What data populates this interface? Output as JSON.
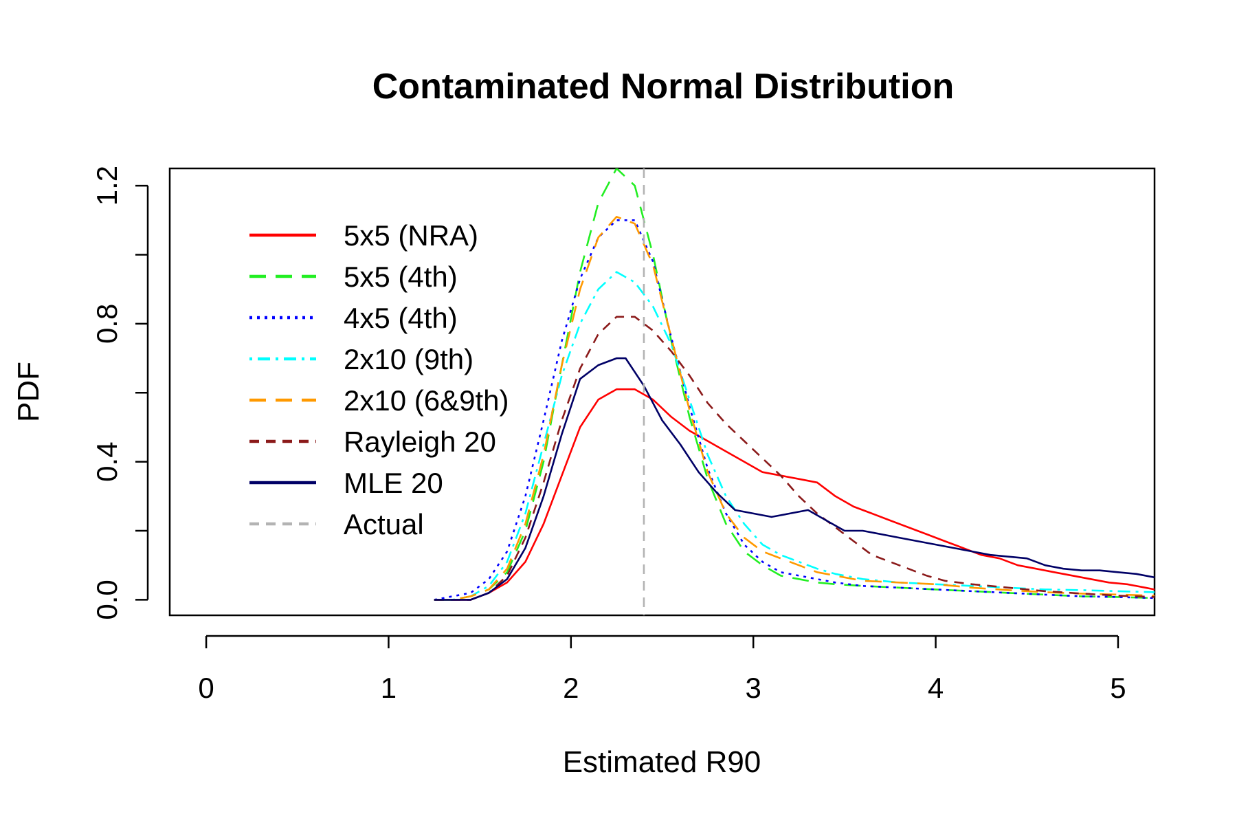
{
  "chart_data": {
    "type": "line",
    "title": "Contaminated Normal Distribution",
    "xlabel": "Estimated R90",
    "ylabel": "PDF",
    "xlim": [
      -0.2,
      5.2
    ],
    "ylim": [
      -0.045,
      1.25
    ],
    "x_ticks": [
      0,
      1,
      2,
      3,
      4,
      5
    ],
    "x_tick_labels": [
      "0",
      "1",
      "2",
      "3",
      "4",
      "5"
    ],
    "y_ticks": [
      0.0,
      0.2,
      0.4,
      0.6,
      0.8,
      1.0,
      1.2
    ],
    "y_tick_labels": [
      "0.0",
      "",
      "0.4",
      "",
      "0.8",
      "",
      "1.2"
    ],
    "grid": false,
    "legend_position": "top-left",
    "series": [
      {
        "name": "5x5 (NRA)",
        "color": "#ff0000",
        "dash": "solid",
        "x": [
          1.25,
          1.35,
          1.45,
          1.55,
          1.65,
          1.75,
          1.85,
          1.95,
          2.05,
          2.15,
          2.25,
          2.35,
          2.45,
          2.55,
          2.65,
          2.75,
          2.85,
          2.95,
          3.05,
          3.15,
          3.25,
          3.35,
          3.45,
          3.55,
          3.65,
          3.75,
          3.85,
          3.95,
          4.05,
          4.15,
          4.25,
          4.35,
          4.45,
          4.55,
          4.65,
          4.75,
          4.85,
          4.95,
          5.05,
          5.15,
          5.2
        ],
        "y": [
          0.0,
          0.0,
          0.0,
          0.02,
          0.05,
          0.11,
          0.22,
          0.36,
          0.5,
          0.58,
          0.61,
          0.61,
          0.58,
          0.53,
          0.49,
          0.46,
          0.43,
          0.4,
          0.37,
          0.36,
          0.35,
          0.34,
          0.3,
          0.27,
          0.25,
          0.23,
          0.21,
          0.19,
          0.17,
          0.15,
          0.13,
          0.12,
          0.1,
          0.09,
          0.08,
          0.07,
          0.06,
          0.05,
          0.045,
          0.035,
          0.03
        ]
      },
      {
        "name": "5x5 (4th)",
        "color": "#22ee22",
        "dash": "long-dash",
        "x": [
          1.25,
          1.35,
          1.45,
          1.55,
          1.65,
          1.75,
          1.85,
          1.95,
          2.05,
          2.15,
          2.25,
          2.35,
          2.45,
          2.55,
          2.65,
          2.75,
          2.85,
          2.95,
          3.05,
          3.15,
          3.25,
          3.35,
          3.45,
          3.6,
          3.8,
          4.0,
          4.2,
          4.4,
          4.6,
          4.8,
          5.0,
          5.2
        ],
        "y": [
          0.0,
          0.0,
          0.01,
          0.03,
          0.08,
          0.2,
          0.4,
          0.68,
          0.95,
          1.15,
          1.25,
          1.2,
          1.0,
          0.75,
          0.53,
          0.35,
          0.22,
          0.14,
          0.1,
          0.07,
          0.06,
          0.05,
          0.045,
          0.04,
          0.035,
          0.03,
          0.025,
          0.02,
          0.015,
          0.01,
          0.008,
          0.005
        ]
      },
      {
        "name": "4x5 (4th)",
        "color": "#0000ff",
        "dash": "dotted",
        "x": [
          1.25,
          1.35,
          1.45,
          1.55,
          1.65,
          1.75,
          1.85,
          1.95,
          2.05,
          2.15,
          2.25,
          2.35,
          2.45,
          2.55,
          2.65,
          2.75,
          2.85,
          2.95,
          3.05,
          3.15,
          3.25,
          3.35,
          3.45,
          3.6,
          3.8,
          4.0,
          4.2,
          4.4,
          4.6,
          4.8,
          5.0,
          5.2
        ],
        "y": [
          0.0,
          0.01,
          0.02,
          0.06,
          0.14,
          0.3,
          0.52,
          0.75,
          0.93,
          1.05,
          1.1,
          1.1,
          0.98,
          0.76,
          0.56,
          0.38,
          0.25,
          0.16,
          0.11,
          0.08,
          0.07,
          0.06,
          0.05,
          0.04,
          0.035,
          0.03,
          0.025,
          0.02,
          0.015,
          0.01,
          0.008,
          0.005
        ]
      },
      {
        "name": "2x10 (9th)",
        "color": "#00ffff",
        "dash": "dot-dash",
        "x": [
          1.25,
          1.35,
          1.45,
          1.55,
          1.65,
          1.75,
          1.85,
          1.95,
          2.05,
          2.15,
          2.25,
          2.35,
          2.45,
          2.55,
          2.65,
          2.75,
          2.85,
          2.95,
          3.05,
          3.15,
          3.25,
          3.35,
          3.45,
          3.6,
          3.8,
          4.0,
          4.2,
          4.4,
          4.6,
          4.8,
          5.0,
          5.2
        ],
        "y": [
          0.0,
          0.0,
          0.01,
          0.04,
          0.11,
          0.25,
          0.45,
          0.65,
          0.8,
          0.9,
          0.95,
          0.92,
          0.85,
          0.74,
          0.58,
          0.42,
          0.3,
          0.22,
          0.16,
          0.13,
          0.11,
          0.09,
          0.075,
          0.06,
          0.05,
          0.045,
          0.04,
          0.035,
          0.03,
          0.028,
          0.025,
          0.022
        ]
      },
      {
        "name": "2x10 (6&9th)",
        "color": "#ff9900",
        "dash": "long-dash",
        "x": [
          1.25,
          1.35,
          1.45,
          1.55,
          1.65,
          1.75,
          1.85,
          1.95,
          2.05,
          2.15,
          2.25,
          2.35,
          2.45,
          2.55,
          2.65,
          2.75,
          2.85,
          2.95,
          3.05,
          3.15,
          3.25,
          3.35,
          3.45,
          3.6,
          3.8,
          4.0,
          4.2,
          4.4,
          4.6,
          4.8,
          5.0,
          5.2
        ],
        "y": [
          0.0,
          0.0,
          0.01,
          0.03,
          0.09,
          0.22,
          0.42,
          0.68,
          0.9,
          1.05,
          1.11,
          1.09,
          0.97,
          0.76,
          0.55,
          0.37,
          0.25,
          0.18,
          0.14,
          0.12,
          0.1,
          0.08,
          0.07,
          0.055,
          0.05,
          0.045,
          0.035,
          0.028,
          0.022,
          0.018,
          0.015,
          0.012
        ]
      },
      {
        "name": "Rayleigh 20",
        "color": "#8b1a1a",
        "dash": "short-dash",
        "x": [
          1.25,
          1.35,
          1.45,
          1.55,
          1.65,
          1.75,
          1.85,
          1.95,
          2.05,
          2.15,
          2.25,
          2.35,
          2.45,
          2.55,
          2.65,
          2.75,
          2.85,
          2.95,
          3.05,
          3.15,
          3.25,
          3.35,
          3.45,
          3.55,
          3.65,
          3.75,
          3.85,
          3.95,
          4.05,
          4.2,
          4.4,
          4.6,
          4.8,
          5.0,
          5.2
        ],
        "y": [
          0.0,
          0.0,
          0.0,
          0.02,
          0.07,
          0.18,
          0.34,
          0.52,
          0.67,
          0.77,
          0.82,
          0.82,
          0.78,
          0.72,
          0.65,
          0.57,
          0.51,
          0.46,
          0.41,
          0.36,
          0.3,
          0.25,
          0.21,
          0.17,
          0.13,
          0.11,
          0.09,
          0.07,
          0.055,
          0.045,
          0.035,
          0.025,
          0.018,
          0.012,
          0.008
        ]
      },
      {
        "name": "MLE 20",
        "color": "#000066",
        "dash": "solid",
        "x": [
          1.25,
          1.35,
          1.45,
          1.55,
          1.65,
          1.75,
          1.85,
          1.95,
          2.05,
          2.15,
          2.25,
          2.3,
          2.4,
          2.5,
          2.6,
          2.7,
          2.8,
          2.9,
          3.0,
          3.1,
          3.2,
          3.3,
          3.4,
          3.5,
          3.6,
          3.7,
          3.8,
          3.9,
          4.0,
          4.1,
          4.2,
          4.3,
          4.4,
          4.5,
          4.6,
          4.7,
          4.8,
          4.9,
          5.0,
          5.1,
          5.2
        ],
        "y": [
          0.0,
          0.0,
          0.0,
          0.02,
          0.06,
          0.15,
          0.3,
          0.48,
          0.64,
          0.68,
          0.7,
          0.7,
          0.62,
          0.52,
          0.45,
          0.37,
          0.31,
          0.26,
          0.25,
          0.24,
          0.25,
          0.26,
          0.23,
          0.2,
          0.2,
          0.19,
          0.18,
          0.17,
          0.16,
          0.15,
          0.14,
          0.13,
          0.125,
          0.12,
          0.1,
          0.09,
          0.085,
          0.085,
          0.08,
          0.075,
          0.065
        ]
      }
    ],
    "reference_line": {
      "name": "Actual",
      "color": "#b3b3b3",
      "dash": "dashed",
      "x": 2.4
    }
  }
}
